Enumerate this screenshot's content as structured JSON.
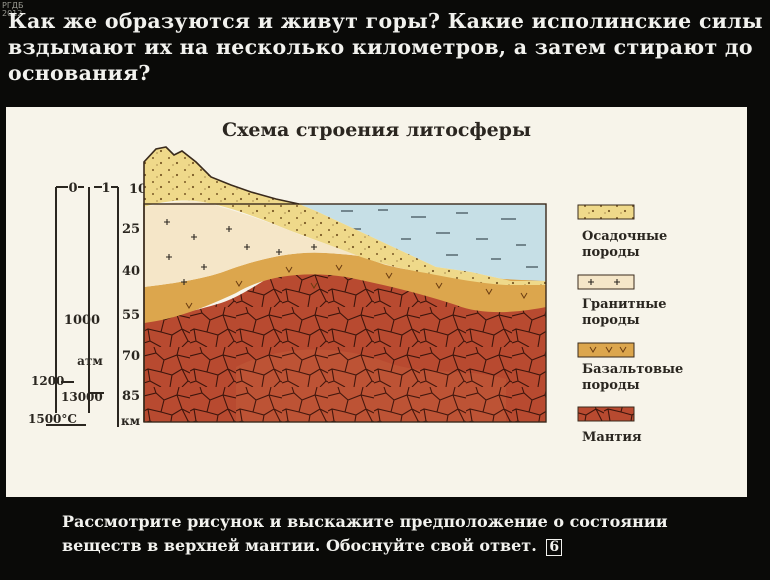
{
  "header": {
    "stamp_line1": "РГДБ",
    "stamp_line2": "2012",
    "question": "Как же образуются и живут горы? Какие исполинские силы вздымают их на несколько километров, а затем стирают до основания?"
  },
  "diagram": {
    "title": "Схема строения литосферы",
    "scale_left": {
      "top_left": "0",
      "top_right": "1",
      "pressure": "1000",
      "pressure_unit": "атм",
      "pressure_range_low": "1200–",
      "pressure_range_high": "13000",
      "temperature": "1500°C"
    },
    "depth_scale": {
      "ticks": [
        "10",
        "25",
        "40",
        "55",
        "70",
        "85"
      ],
      "unit": "км"
    },
    "legend": [
      {
        "label_line1": "Осадочные",
        "label_line2": "породы",
        "color": "#eed77e"
      },
      {
        "label_line1": "Гранитные",
        "label_line2": "породы",
        "color": "#f3e4c4"
      },
      {
        "label_line1": "Базальтовые",
        "label_line2": "породы",
        "color": "#d9a24c"
      },
      {
        "label_line1": "Мантия",
        "label_line2": "",
        "color": "#b2452f"
      }
    ]
  },
  "footer": {
    "text": "Рассмотрите рисунок и выскажите предположение о состоянии веществ в верхней мантии. Обоснуйте свой ответ.",
    "page_number": "6"
  }
}
